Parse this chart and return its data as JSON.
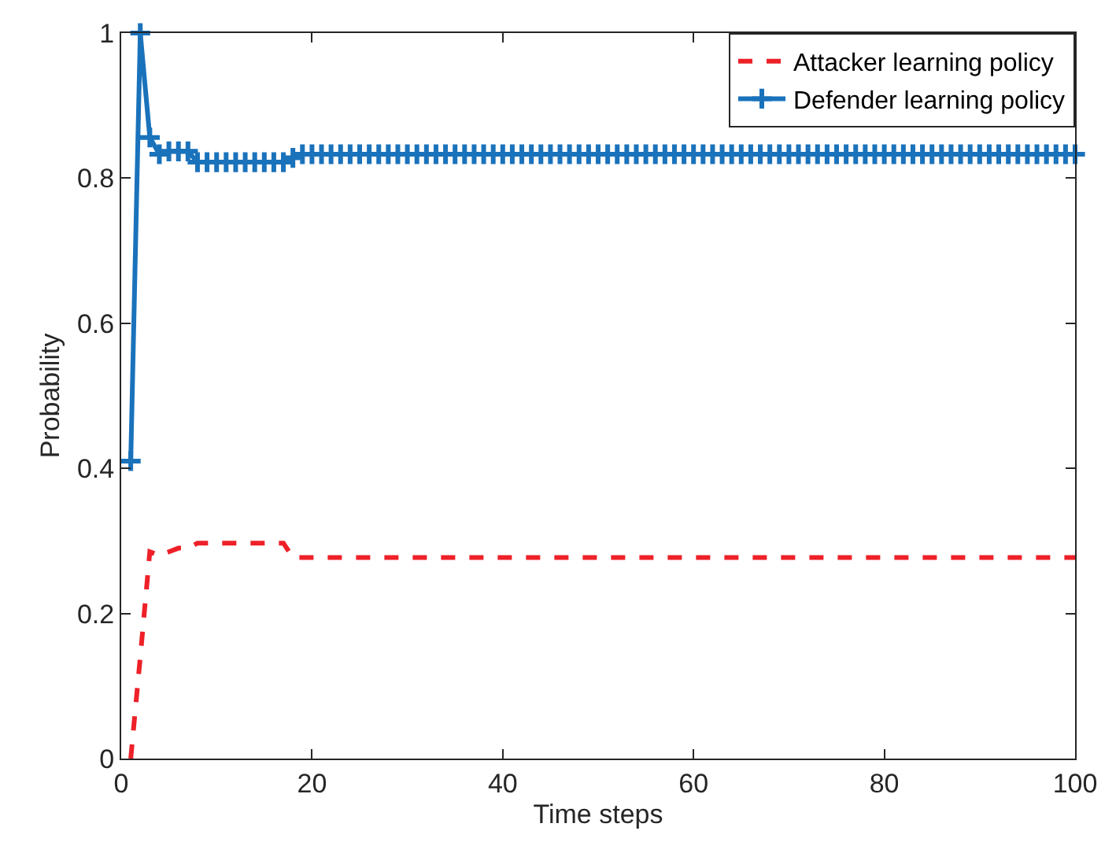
{
  "chart_data": {
    "type": "line",
    "xlabel": "Time steps",
    "ylabel": "Probability",
    "x": [
      1,
      2,
      3,
      4,
      5,
      6,
      7,
      8,
      9,
      10,
      11,
      12,
      13,
      14,
      15,
      16,
      17,
      18,
      19,
      20,
      21,
      22,
      23,
      24,
      25,
      26,
      27,
      28,
      29,
      30,
      31,
      32,
      33,
      34,
      35,
      36,
      37,
      38,
      39,
      40,
      41,
      42,
      43,
      44,
      45,
      46,
      47,
      48,
      49,
      50,
      51,
      52,
      53,
      54,
      55,
      56,
      57,
      58,
      59,
      60,
      61,
      62,
      63,
      64,
      65,
      66,
      67,
      68,
      69,
      70,
      71,
      72,
      73,
      74,
      75,
      76,
      77,
      78,
      79,
      80,
      81,
      82,
      83,
      84,
      85,
      86,
      87,
      88,
      89,
      90,
      91,
      92,
      93,
      94,
      95,
      96,
      97,
      98,
      99,
      100
    ],
    "series": [
      {
        "name": "Attacker learning policy",
        "color": "#ee2028",
        "line_style": "dashed",
        "marker": "none",
        "values": [
          0,
          0.14,
          0.285,
          0.28,
          0.285,
          0.29,
          0.29,
          0.297,
          0.297,
          0.297,
          0.297,
          0.297,
          0.297,
          0.297,
          0.297,
          0.297,
          0.297,
          0.277,
          0.277,
          0.277,
          0.277,
          0.277,
          0.277,
          0.277,
          0.277,
          0.277,
          0.277,
          0.277,
          0.277,
          0.277,
          0.277,
          0.277,
          0.277,
          0.277,
          0.277,
          0.277,
          0.277,
          0.277,
          0.277,
          0.277,
          0.277,
          0.277,
          0.277,
          0.277,
          0.277,
          0.277,
          0.277,
          0.277,
          0.277,
          0.277,
          0.277,
          0.277,
          0.277,
          0.277,
          0.277,
          0.277,
          0.277,
          0.277,
          0.277,
          0.277,
          0.277,
          0.277,
          0.277,
          0.277,
          0.277,
          0.277,
          0.277,
          0.277,
          0.277,
          0.277,
          0.277,
          0.277,
          0.277,
          0.277,
          0.277,
          0.277,
          0.277,
          0.277,
          0.277,
          0.277,
          0.277,
          0.277,
          0.277,
          0.277,
          0.277,
          0.277,
          0.277,
          0.277,
          0.277,
          0.277,
          0.277,
          0.277,
          0.277,
          0.277,
          0.277,
          0.277,
          0.277,
          0.277,
          0.277,
          0.277
        ]
      },
      {
        "name": "Defender learning policy",
        "color": "#1a72bb",
        "line_style": "solid",
        "marker": "cross",
        "values": [
          0.41,
          1.0,
          0.856,
          0.833,
          0.837,
          0.837,
          0.837,
          0.822,
          0.822,
          0.822,
          0.822,
          0.822,
          0.822,
          0.822,
          0.822,
          0.822,
          0.822,
          0.828,
          0.833,
          0.833,
          0.833,
          0.833,
          0.833,
          0.833,
          0.833,
          0.833,
          0.833,
          0.833,
          0.833,
          0.833,
          0.833,
          0.833,
          0.833,
          0.833,
          0.833,
          0.833,
          0.833,
          0.833,
          0.833,
          0.833,
          0.833,
          0.833,
          0.833,
          0.833,
          0.833,
          0.833,
          0.833,
          0.833,
          0.833,
          0.833,
          0.833,
          0.833,
          0.833,
          0.833,
          0.833,
          0.833,
          0.833,
          0.833,
          0.833,
          0.833,
          0.833,
          0.833,
          0.833,
          0.833,
          0.833,
          0.833,
          0.833,
          0.833,
          0.833,
          0.833,
          0.833,
          0.833,
          0.833,
          0.833,
          0.833,
          0.833,
          0.833,
          0.833,
          0.833,
          0.833,
          0.833,
          0.833,
          0.833,
          0.833,
          0.833,
          0.833,
          0.833,
          0.833,
          0.833,
          0.833,
          0.833,
          0.833,
          0.833,
          0.833,
          0.833,
          0.833,
          0.833,
          0.833,
          0.833,
          0.833
        ]
      }
    ],
    "xlim": [
      0,
      100
    ],
    "xticks": [
      0,
      20,
      40,
      60,
      80,
      100
    ],
    "ylim": [
      0,
      1
    ],
    "yticks": [
      0,
      0.2,
      0.4,
      0.6,
      0.8,
      1
    ],
    "legend": "top right"
  }
}
